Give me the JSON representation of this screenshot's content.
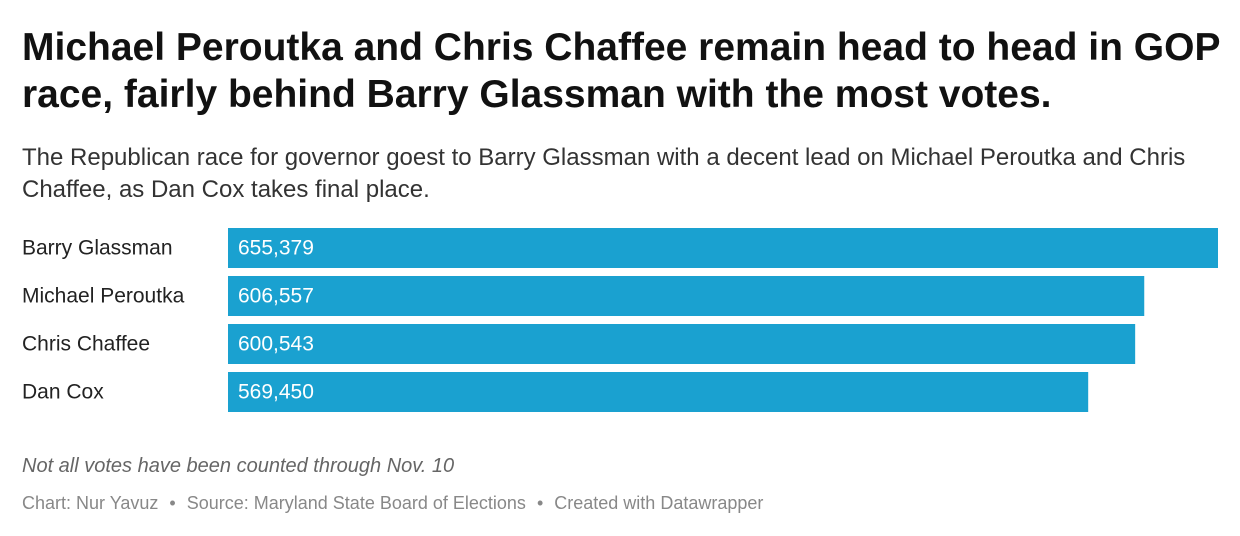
{
  "title": "Michael Peroutka and Chris Chaffee remain head to head in GOP race, fairly behind Barry Glassman with the most votes.",
  "subtitle": "The Republican race for governor goest to Barry Glassman with a decent lead on Michael Peroutka and Chris Chaffee, as Dan Cox takes final place.",
  "notes": "Not all votes have been counted through Nov. 10",
  "footer": {
    "chart_credit": "Chart: Nur Yavuz",
    "separator": "•",
    "source": "Source: Maryland State Board of Elections",
    "created_with": "Created with Datawrapper"
  },
  "colors": {
    "bar": "#1aa1d0",
    "bar_label": "#ffffff",
    "category_label": "#222222"
  },
  "chart_data": {
    "type": "bar",
    "orientation": "horizontal",
    "categories": [
      "Barry Glassman",
      "Michael Peroutka",
      "Chris Chaffee",
      "Dan Cox"
    ],
    "values": [
      655379,
      606557,
      600543,
      569450
    ],
    "value_labels": [
      "655,379",
      "606,557",
      "600,543",
      "569,450"
    ],
    "title": "Michael Peroutka and Chris Chaffee remain head to head in GOP race, fairly behind Barry Glassman with the most votes.",
    "xlabel": "",
    "ylabel": "",
    "xlim": [
      0,
      655379
    ],
    "grid": false,
    "legend": "none"
  }
}
